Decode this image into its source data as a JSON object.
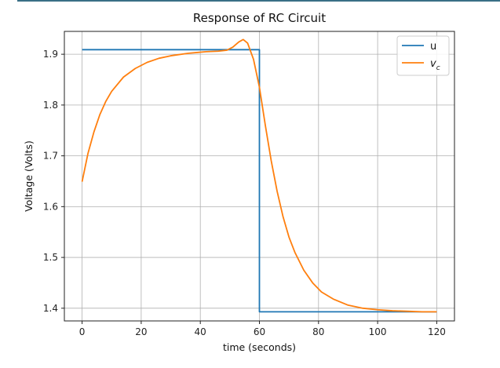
{
  "chart_data": {
    "type": "line",
    "title": "Response of RC Circuit",
    "xlabel": "time (seconds)",
    "ylabel": "Voltage (Volts)",
    "xlim": [
      -6,
      126
    ],
    "ylim": [
      1.375,
      1.945
    ],
    "xticks": [
      0,
      20,
      40,
      60,
      80,
      100,
      120
    ],
    "xtick_labels": [
      "0",
      "20",
      "40",
      "60",
      "80",
      "100",
      "120"
    ],
    "yticks": [
      1.4,
      1.5,
      1.6,
      1.7,
      1.8,
      1.9
    ],
    "ytick_labels": [
      "1.4",
      "1.5",
      "1.6",
      "1.7",
      "1.8",
      "1.9"
    ],
    "grid": true,
    "legend_position": "top-right",
    "series": [
      {
        "name": "u",
        "color": "#1f77b4",
        "x": [
          0,
          60,
          60,
          120
        ],
        "y": [
          1.909,
          1.909,
          1.393,
          1.393
        ]
      },
      {
        "name": "v",
        "subscript": "c",
        "color": "#ff7f0e",
        "x": [
          0,
          2,
          4,
          6,
          8,
          10,
          14,
          18,
          22,
          26,
          30,
          36,
          42,
          46,
          49,
          51,
          53,
          54.5,
          56,
          58,
          60,
          62,
          64,
          66,
          68,
          70,
          72,
          75,
          78,
          81,
          85,
          90,
          95,
          100,
          105,
          110,
          115,
          120
        ],
        "y": [
          1.649,
          1.705,
          1.747,
          1.781,
          1.807,
          1.827,
          1.855,
          1.872,
          1.884,
          1.892,
          1.897,
          1.902,
          1.905,
          1.906,
          1.908,
          1.914,
          1.924,
          1.929,
          1.922,
          1.89,
          1.835,
          1.76,
          1.69,
          1.63,
          1.58,
          1.54,
          1.51,
          1.475,
          1.45,
          1.432,
          1.418,
          1.406,
          1.4,
          1.397,
          1.395,
          1.394,
          1.393,
          1.393
        ]
      }
    ]
  }
}
